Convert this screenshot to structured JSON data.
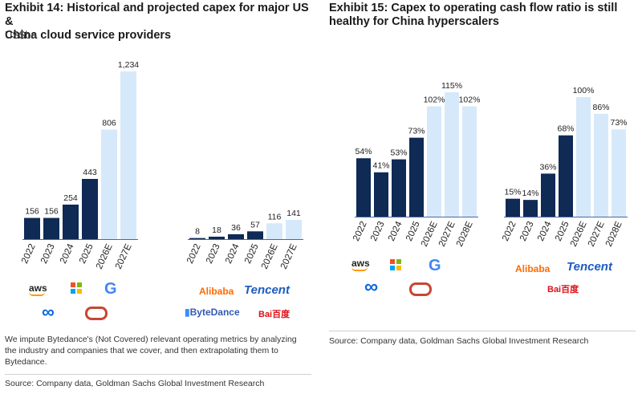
{
  "exhibit14": {
    "title_line1": "Exhibit 14: Historical and projected capex for major US &",
    "title_line2": "China cloud service providers",
    "unit": "US$bn",
    "note_line1": "We impute Bytedance's (Not Covered) relevant operating metrics by analyzing",
    "note_line2": "the industry and companies that we cover, and then extrapolating them to",
    "note_line3": "Bytedance.",
    "source": "Source: Company data, Goldman Sachs Global Investment Research",
    "logos_left": {
      "aws": "aws",
      "icons": [
        "microsoft-icon",
        "google-icon",
        "meta-icon",
        "oracle-icon"
      ]
    },
    "logos_right": {
      "alibaba": "Alibaba",
      "tencent": "Tencent",
      "bytedance": "ByteDance",
      "baidu": "Bai百度"
    }
  },
  "exhibit15": {
    "title_line1": "Exhibit 15: Capex to operating cash flow ratio is still",
    "title_line2": "healthy for China hyperscalers",
    "source": "Source: Company data, Goldman Sachs Global Investment Research",
    "logos_left": {
      "aws": "aws",
      "icons": [
        "microsoft-icon",
        "google-icon",
        "meta-icon",
        "oracle-icon"
      ]
    },
    "logos_right": {
      "alibaba": "Alibaba",
      "tencent": "Tencent",
      "baidu": "Bai百度"
    }
  },
  "colors": {
    "actual": "#0e2a55",
    "estimate": "#d6e9fb",
    "axis": "#4a6a9a"
  },
  "chart_data": [
    {
      "type": "bar",
      "group": "US",
      "categories": [
        "2022",
        "2023",
        "2024",
        "2025",
        "2026E",
        "2027E"
      ],
      "values": [
        156,
        156,
        254,
        443,
        806,
        1234
      ],
      "labels": [
        "156",
        "156",
        "254",
        "443",
        "806",
        "1,234"
      ]
    },
    {
      "type": "bar",
      "group": "China",
      "categories": [
        "2022",
        "2023",
        "2024",
        "2025",
        "2026E",
        "2027E"
      ],
      "values": [
        8,
        18,
        36,
        57,
        116,
        141
      ],
      "labels": [
        "8",
        "18",
        "36",
        "57",
        "116",
        "141"
      ]
    },
    {
      "type": "bar",
      "group": "US",
      "categories": [
        "2022",
        "2023",
        "2024",
        "2025",
        "2026E",
        "2027E",
        "2028E"
      ],
      "values": [
        54,
        41,
        53,
        73,
        102,
        115,
        102
      ],
      "labels": [
        "54%",
        "41%",
        "53%",
        "73%",
        "102%",
        "115%",
        "102%"
      ]
    },
    {
      "type": "bar",
      "group": "China",
      "categories": [
        "2022",
        "2023",
        "2024",
        "2025",
        "2026E",
        "2027E",
        "2028E"
      ],
      "values": [
        15,
        14,
        36,
        68,
        100,
        86,
        73
      ],
      "labels": [
        "15%",
        "14%",
        "36%",
        "68%",
        "100%",
        "86%",
        "73%"
      ]
    }
  ]
}
